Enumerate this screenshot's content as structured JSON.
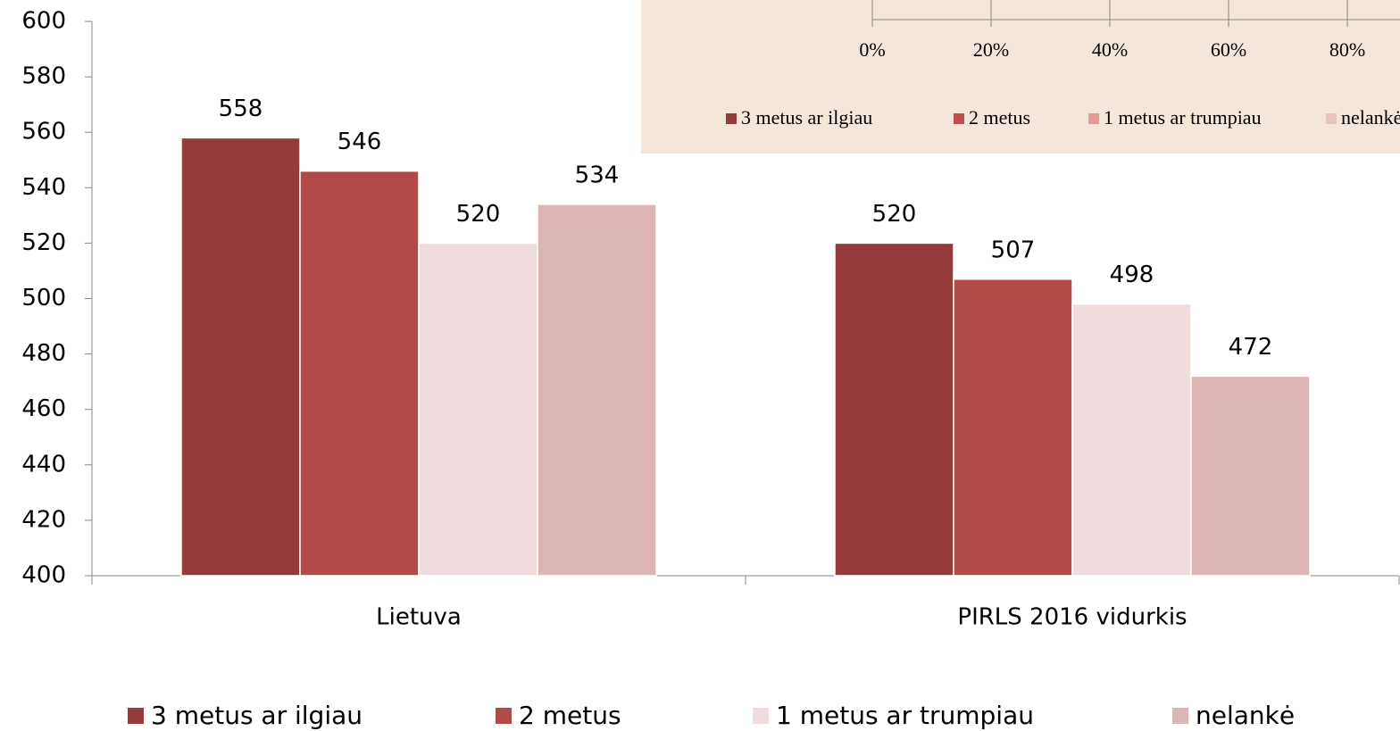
{
  "chart_data": [
    {
      "type": "bar",
      "categories": [
        "Lietuva",
        "PIRLS 2016 vidurkis"
      ],
      "series": [
        {
          "name": "3 metus ar ilgiau",
          "color": "#953b3b",
          "values": [
            558,
            520
          ]
        },
        {
          "name": "2 metus",
          "color": "#b24a48",
          "values": [
            546,
            507
          ]
        },
        {
          "name": "1 metus ar trumpiau",
          "color": "#f0dcdc",
          "values": [
            520,
            498
          ]
        },
        {
          "name": "nelankė",
          "color": "#deb5b5",
          "values": [
            534,
            472
          ]
        }
      ],
      "ylim": [
        400,
        600
      ],
      "yticks": [
        400,
        420,
        440,
        460,
        480,
        500,
        520,
        540,
        560,
        580,
        600
      ],
      "legend": "bottom"
    },
    {
      "type": "hbar",
      "series": [
        {
          "name": "3 metus ar ilgiau",
          "color": "#953b3b"
        },
        {
          "name": "2 metus",
          "color": "#c0504d"
        },
        {
          "name": "1 metus ar trumpiau",
          "color": "#e39d98"
        },
        {
          "name": "nelankė",
          "color": "#e8c4c0"
        }
      ],
      "xlim": [
        0,
        100
      ],
      "xticks": [
        {
          "value": 0,
          "label": "0%"
        },
        {
          "value": 20,
          "label": "20%"
        },
        {
          "value": 40,
          "label": "40%"
        },
        {
          "value": 60,
          "label": "60%"
        },
        {
          "value": 80,
          "label": "80%"
        }
      ],
      "legend": "bottom"
    }
  ]
}
